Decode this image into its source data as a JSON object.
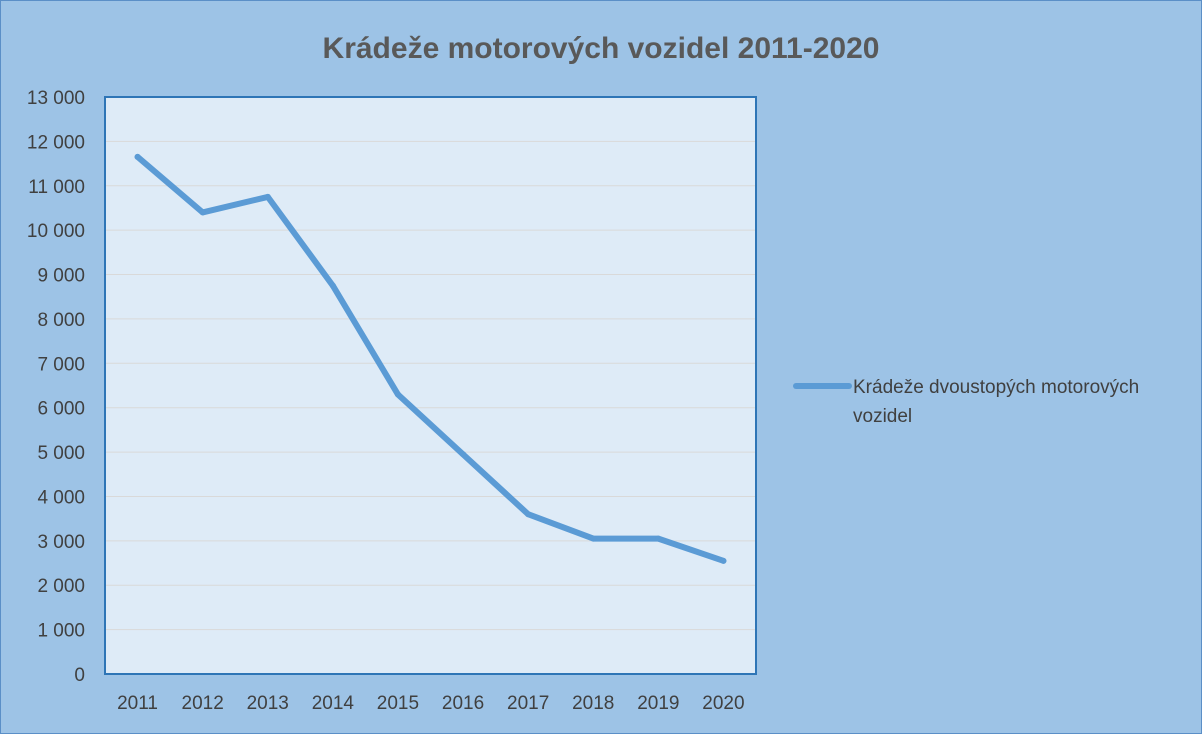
{
  "chart_data": {
    "type": "line",
    "title": "Krádeže motorových vozidel 2011-2020",
    "xlabel": "",
    "ylabel": "",
    "categories": [
      "2011",
      "2012",
      "2013",
      "2014",
      "2015",
      "2016",
      "2017",
      "2018",
      "2019",
      "2020"
    ],
    "series": [
      {
        "name": "Krádeže dvoustopých motorových vozidel",
        "values": [
          11650,
          10400,
          10750,
          8750,
          6300,
          4950,
          3600,
          3050,
          3050,
          2550
        ],
        "color": "#5b9bd5"
      }
    ],
    "ylim": [
      0,
      13000
    ],
    "yticks": [
      0,
      1000,
      2000,
      3000,
      4000,
      5000,
      6000,
      7000,
      8000,
      9000,
      10000,
      11000,
      12000,
      13000
    ],
    "ytick_labels": [
      "0",
      "1 000",
      "2 000",
      "3 000",
      "4 000",
      "5 000",
      "6 000",
      "7 000",
      "8 000",
      "9 000",
      "10 000",
      "11 000",
      "12 000",
      "13 000"
    ],
    "grid": true,
    "legend_position": "right",
    "legend_lines": [
      "Krádeže dvoustopých motorových",
      "vozidel"
    ],
    "colors": {
      "background": "#9dc3e6",
      "plot_area": "#deebf7",
      "gridline": "#d9d9d9",
      "plot_border": "#2e75b6"
    }
  }
}
